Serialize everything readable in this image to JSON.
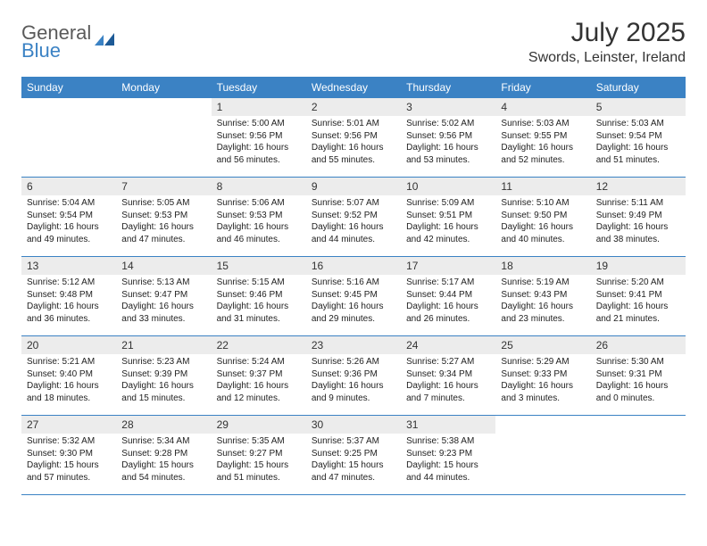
{
  "brand": {
    "word1": "General",
    "word2": "Blue"
  },
  "title": "July 2025",
  "location": "Swords, Leinster, Ireland",
  "colors": {
    "header_bg": "#3b82c4",
    "header_text": "#ffffff",
    "daynum_bg": "#ececec",
    "row_border": "#3b82c4",
    "logo_gray": "#5a5a5a",
    "logo_blue": "#3b82c4"
  },
  "dayHeaders": [
    "Sunday",
    "Monday",
    "Tuesday",
    "Wednesday",
    "Thursday",
    "Friday",
    "Saturday"
  ],
  "weeks": [
    [
      null,
      null,
      {
        "n": "1",
        "sr": "5:00 AM",
        "ss": "9:56 PM",
        "dl": "16 hours and 56 minutes."
      },
      {
        "n": "2",
        "sr": "5:01 AM",
        "ss": "9:56 PM",
        "dl": "16 hours and 55 minutes."
      },
      {
        "n": "3",
        "sr": "5:02 AM",
        "ss": "9:56 PM",
        "dl": "16 hours and 53 minutes."
      },
      {
        "n": "4",
        "sr": "5:03 AM",
        "ss": "9:55 PM",
        "dl": "16 hours and 52 minutes."
      },
      {
        "n": "5",
        "sr": "5:03 AM",
        "ss": "9:54 PM",
        "dl": "16 hours and 51 minutes."
      }
    ],
    [
      {
        "n": "6",
        "sr": "5:04 AM",
        "ss": "9:54 PM",
        "dl": "16 hours and 49 minutes."
      },
      {
        "n": "7",
        "sr": "5:05 AM",
        "ss": "9:53 PM",
        "dl": "16 hours and 47 minutes."
      },
      {
        "n": "8",
        "sr": "5:06 AM",
        "ss": "9:53 PM",
        "dl": "16 hours and 46 minutes."
      },
      {
        "n": "9",
        "sr": "5:07 AM",
        "ss": "9:52 PM",
        "dl": "16 hours and 44 minutes."
      },
      {
        "n": "10",
        "sr": "5:09 AM",
        "ss": "9:51 PM",
        "dl": "16 hours and 42 minutes."
      },
      {
        "n": "11",
        "sr": "5:10 AM",
        "ss": "9:50 PM",
        "dl": "16 hours and 40 minutes."
      },
      {
        "n": "12",
        "sr": "5:11 AM",
        "ss": "9:49 PM",
        "dl": "16 hours and 38 minutes."
      }
    ],
    [
      {
        "n": "13",
        "sr": "5:12 AM",
        "ss": "9:48 PM",
        "dl": "16 hours and 36 minutes."
      },
      {
        "n": "14",
        "sr": "5:13 AM",
        "ss": "9:47 PM",
        "dl": "16 hours and 33 minutes."
      },
      {
        "n": "15",
        "sr": "5:15 AM",
        "ss": "9:46 PM",
        "dl": "16 hours and 31 minutes."
      },
      {
        "n": "16",
        "sr": "5:16 AM",
        "ss": "9:45 PM",
        "dl": "16 hours and 29 minutes."
      },
      {
        "n": "17",
        "sr": "5:17 AM",
        "ss": "9:44 PM",
        "dl": "16 hours and 26 minutes."
      },
      {
        "n": "18",
        "sr": "5:19 AM",
        "ss": "9:43 PM",
        "dl": "16 hours and 23 minutes."
      },
      {
        "n": "19",
        "sr": "5:20 AM",
        "ss": "9:41 PM",
        "dl": "16 hours and 21 minutes."
      }
    ],
    [
      {
        "n": "20",
        "sr": "5:21 AM",
        "ss": "9:40 PM",
        "dl": "16 hours and 18 minutes."
      },
      {
        "n": "21",
        "sr": "5:23 AM",
        "ss": "9:39 PM",
        "dl": "16 hours and 15 minutes."
      },
      {
        "n": "22",
        "sr": "5:24 AM",
        "ss": "9:37 PM",
        "dl": "16 hours and 12 minutes."
      },
      {
        "n": "23",
        "sr": "5:26 AM",
        "ss": "9:36 PM",
        "dl": "16 hours and 9 minutes."
      },
      {
        "n": "24",
        "sr": "5:27 AM",
        "ss": "9:34 PM",
        "dl": "16 hours and 7 minutes."
      },
      {
        "n": "25",
        "sr": "5:29 AM",
        "ss": "9:33 PM",
        "dl": "16 hours and 3 minutes."
      },
      {
        "n": "26",
        "sr": "5:30 AM",
        "ss": "9:31 PM",
        "dl": "16 hours and 0 minutes."
      }
    ],
    [
      {
        "n": "27",
        "sr": "5:32 AM",
        "ss": "9:30 PM",
        "dl": "15 hours and 57 minutes."
      },
      {
        "n": "28",
        "sr": "5:34 AM",
        "ss": "9:28 PM",
        "dl": "15 hours and 54 minutes."
      },
      {
        "n": "29",
        "sr": "5:35 AM",
        "ss": "9:27 PM",
        "dl": "15 hours and 51 minutes."
      },
      {
        "n": "30",
        "sr": "5:37 AM",
        "ss": "9:25 PM",
        "dl": "15 hours and 47 minutes."
      },
      {
        "n": "31",
        "sr": "5:38 AM",
        "ss": "9:23 PM",
        "dl": "15 hours and 44 minutes."
      },
      null,
      null
    ]
  ],
  "labels": {
    "sunrise": "Sunrise: ",
    "sunset": "Sunset: ",
    "daylight": "Daylight: "
  }
}
